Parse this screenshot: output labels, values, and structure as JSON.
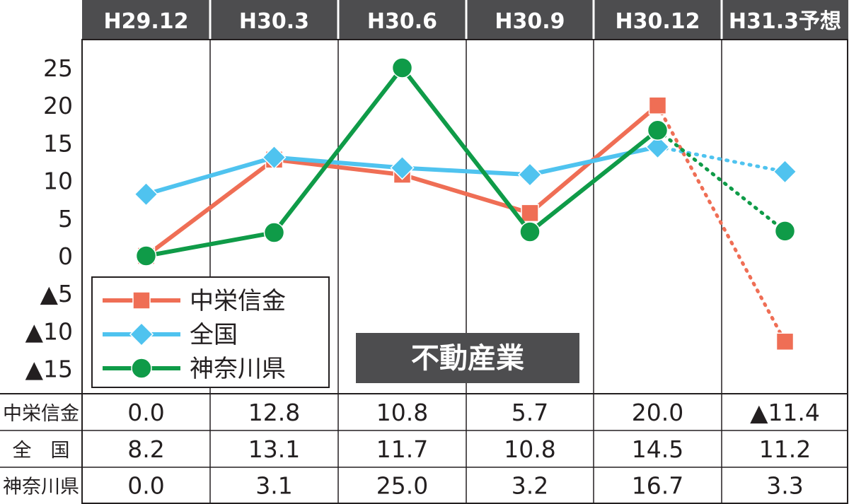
{
  "chart_data": {
    "type": "line",
    "badge": "不動産業",
    "categories": [
      "H29.12",
      "H30.3",
      "H30.6",
      "H30.9",
      "H30.12",
      "H31.3予想"
    ],
    "forecast_from_index": 4,
    "y_tick_labels": [
      "25",
      "20",
      "15",
      "10",
      "5",
      "0",
      "▲5",
      "▲10",
      "▲15"
    ],
    "y_ticks": [
      25,
      20,
      15,
      10,
      5,
      0,
      -5,
      -10,
      -15
    ],
    "ylim": [
      -17,
      28
    ],
    "legend_position": "bottom-left",
    "series": [
      {
        "name": "中栄信金",
        "marker": "square",
        "color": "#ef6e55",
        "values": [
          0.0,
          12.8,
          10.8,
          5.7,
          20.0,
          -11.4
        ],
        "labels": [
          "0.0",
          "12.8",
          "10.8",
          "5.7",
          "20.0",
          "▲11.4"
        ]
      },
      {
        "name": "全国",
        "marker": "diamond",
        "color": "#4fc3ef",
        "values": [
          8.2,
          13.1,
          11.7,
          10.8,
          14.5,
          11.2
        ],
        "labels": [
          "8.2",
          "13.1",
          "11.7",
          "10.8",
          "14.5",
          "11.2"
        ]
      },
      {
        "name": "神奈川県",
        "marker": "circle",
        "color": "#0f9b48",
        "values": [
          0.0,
          3.1,
          25.0,
          3.2,
          16.7,
          3.3
        ],
        "labels": [
          "0.0",
          "3.1",
          "25.0",
          "3.2",
          "16.7",
          "3.3"
        ]
      }
    ],
    "table_row_labels": [
      "中栄信金",
      "全　国",
      "神奈川県"
    ]
  }
}
